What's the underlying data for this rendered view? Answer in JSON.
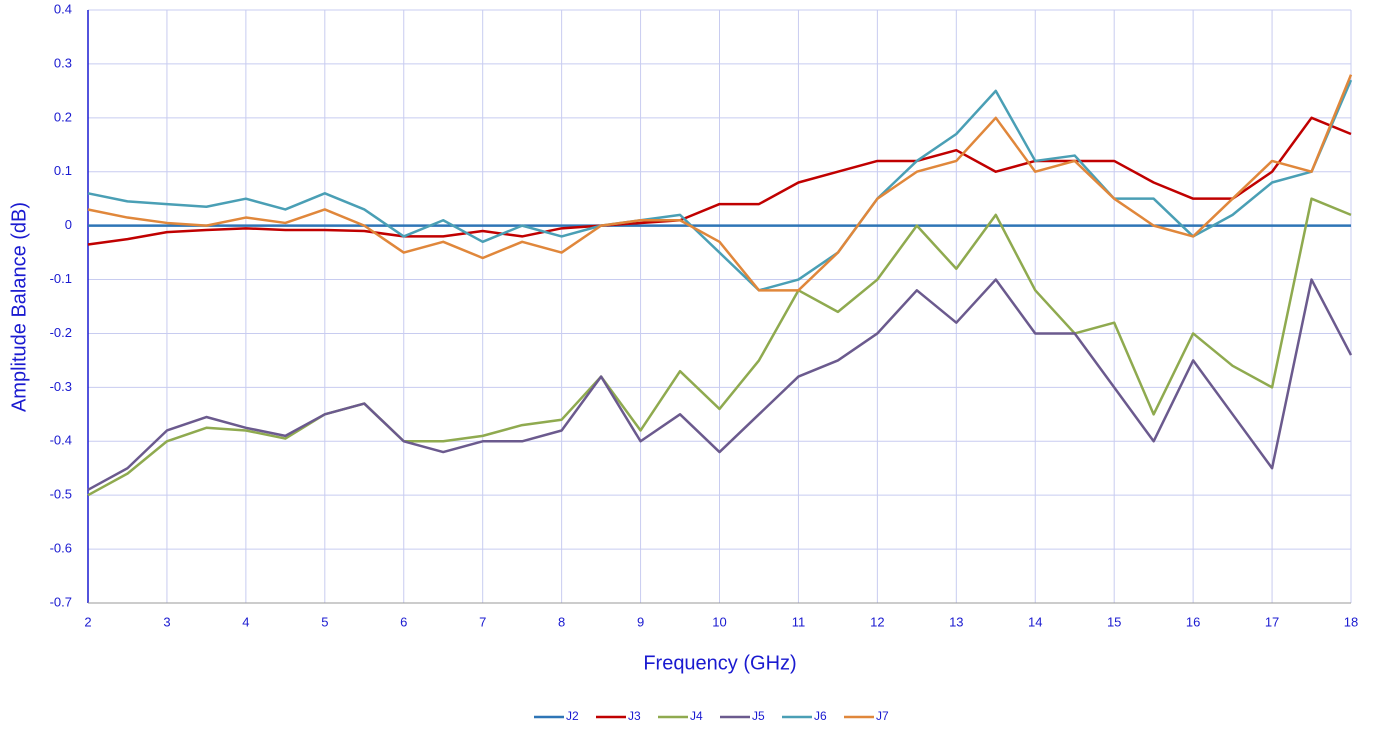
{
  "chart_data": {
    "type": "line",
    "x_label": "Frequency (GHz)",
    "y_label": "Amplitude Balance (dB)",
    "x": [
      2,
      2.5,
      3,
      3.5,
      4,
      4.5,
      5,
      5.5,
      6,
      6.5,
      7,
      7.5,
      8,
      8.5,
      9,
      9.5,
      10,
      10.5,
      11,
      11.5,
      12,
      12.5,
      13,
      13.5,
      14,
      14.5,
      15,
      15.5,
      16,
      16.5,
      17,
      17.5,
      18
    ],
    "series": [
      {
        "name": "J2",
        "color": "#2e75b6",
        "values": [
          0,
          0,
          0,
          0,
          0,
          0,
          0,
          0,
          0,
          0,
          0,
          0,
          0,
          0,
          0,
          0,
          0,
          0,
          0,
          0,
          0,
          0,
          0,
          0,
          0,
          0,
          0,
          0,
          0,
          0,
          0,
          0,
          0
        ]
      },
      {
        "name": "J3",
        "color": "#c00000",
        "values": [
          -0.035,
          -0.025,
          -0.012,
          -0.008,
          -0.005,
          -0.008,
          -0.008,
          -0.01,
          -0.02,
          -0.02,
          -0.01,
          -0.02,
          -0.005,
          0,
          0.005,
          0.01,
          0.04,
          0.04,
          0.08,
          0.1,
          0.12,
          0.12,
          0.14,
          0.1,
          0.12,
          0.12,
          0.12,
          0.08,
          0.05,
          0.05,
          0.1,
          0.2,
          0.17
        ]
      },
      {
        "name": "J4",
        "color": "#8faa4f",
        "values": [
          -0.5,
          -0.46,
          -0.4,
          -0.375,
          -0.38,
          -0.395,
          -0.35,
          -0.33,
          -0.4,
          -0.4,
          -0.39,
          -0.37,
          -0.36,
          -0.28,
          -0.38,
          -0.27,
          -0.34,
          -0.25,
          -0.12,
          -0.16,
          -0.1,
          0,
          -0.08,
          0.02,
          -0.12,
          -0.2,
          -0.18,
          -0.35,
          -0.2,
          -0.26,
          -0.3,
          0.05,
          0.02
        ]
      },
      {
        "name": "J5",
        "color": "#6b5a8e",
        "values": [
          -0.49,
          -0.45,
          -0.38,
          -0.355,
          -0.375,
          -0.39,
          -0.35,
          -0.33,
          -0.4,
          -0.42,
          -0.4,
          -0.4,
          -0.38,
          -0.28,
          -0.4,
          -0.35,
          -0.42,
          -0.35,
          -0.28,
          -0.25,
          -0.2,
          -0.12,
          -0.18,
          -0.1,
          -0.2,
          -0.2,
          -0.3,
          -0.4,
          -0.25,
          -0.35,
          -0.45,
          -0.1,
          -0.24
        ]
      },
      {
        "name": "J6",
        "color": "#4a9fb5",
        "values": [
          0.06,
          0.045,
          0.04,
          0.035,
          0.05,
          0.03,
          0.06,
          0.03,
          -0.02,
          0.01,
          -0.03,
          0,
          -0.02,
          0,
          0.01,
          0.02,
          -0.05,
          -0.12,
          -0.1,
          -0.05,
          0.05,
          0.12,
          0.17,
          0.25,
          0.12,
          0.13,
          0.05,
          0.05,
          -0.02,
          0.02,
          0.08,
          0.1,
          0.27
        ]
      },
      {
        "name": "J7",
        "color": "#e0873b",
        "values": [
          0.03,
          0.015,
          0.005,
          0,
          0.015,
          0.005,
          0.03,
          0,
          -0.05,
          -0.03,
          -0.06,
          -0.03,
          -0.05,
          0,
          0.01,
          0.01,
          -0.03,
          -0.12,
          -0.12,
          -0.05,
          0.05,
          0.1,
          0.12,
          0.2,
          0.1,
          0.12,
          0.05,
          0,
          -0.02,
          0.05,
          0.12,
          0.1,
          0.28
        ]
      }
    ],
    "xlim": [
      2,
      18
    ],
    "xticks": [
      2,
      3,
      4,
      5,
      6,
      7,
      8,
      9,
      10,
      11,
      12,
      13,
      14,
      15,
      16,
      17,
      18
    ],
    "ylim": [
      -0.7,
      0.4
    ],
    "yticks": [
      0.4,
      0.3,
      0.2,
      0.1,
      0,
      -0.1,
      -0.2,
      -0.3,
      -0.4,
      -0.5,
      -0.6,
      -0.7
    ],
    "grid": true,
    "legend": "bottom"
  }
}
